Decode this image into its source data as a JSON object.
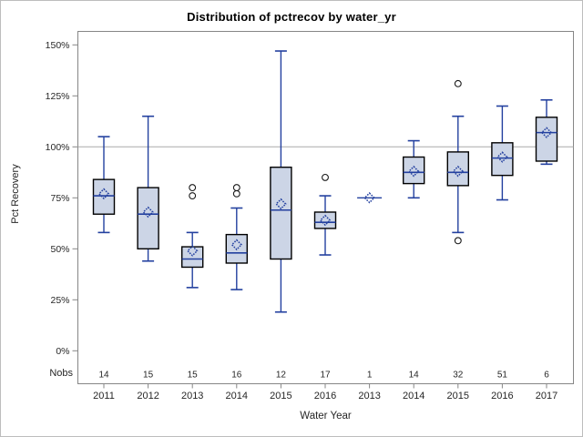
{
  "chart_data": {
    "type": "boxplot",
    "title": "Distribution of pctrecov by water_yr",
    "xlabel": "Water Year",
    "ylabel": "Pct Recovery",
    "nobs_label": "Nobs",
    "y_ticks": [
      "0%",
      "25%",
      "50%",
      "75%",
      "100%",
      "125%",
      "150%"
    ],
    "y_tick_values": [
      0,
      25,
      50,
      75,
      100,
      125,
      150
    ],
    "ylim": [
      0,
      150
    ],
    "reference_line": 100,
    "grid": "off",
    "legend": "none",
    "categories": [
      "2011",
      "2012",
      "2013",
      "2014",
      "2015",
      "2016",
      "2013",
      "2014",
      "2015",
      "2016",
      "2017"
    ],
    "nobs": [
      "14",
      "15",
      "15",
      "16",
      "12",
      "17",
      "1",
      "14",
      "32",
      "51",
      "6"
    ],
    "series": [
      {
        "year": "2011",
        "n": 14,
        "low": 58,
        "q1": 67,
        "median": 76,
        "q3": 84,
        "high": 105,
        "mean": 77,
        "outliers": []
      },
      {
        "year": "2012",
        "n": 15,
        "low": 44,
        "q1": 50,
        "median": 67,
        "q3": 80,
        "high": 115,
        "mean": 68,
        "outliers": []
      },
      {
        "year": "2013",
        "n": 15,
        "low": 31,
        "q1": 41,
        "median": 45,
        "q3": 51,
        "high": 58,
        "mean": 49,
        "outliers": [
          76,
          80
        ]
      },
      {
        "year": "2014",
        "n": 16,
        "low": 30,
        "q1": 43,
        "median": 48,
        "q3": 57,
        "high": 70,
        "mean": 52,
        "outliers": [
          77,
          80
        ]
      },
      {
        "year": "2015",
        "n": 12,
        "low": 19,
        "q1": 45,
        "median": 69,
        "q3": 90,
        "high": 147,
        "mean": 72,
        "outliers": []
      },
      {
        "year": "2016",
        "n": 17,
        "low": 47,
        "q1": 60,
        "median": 63,
        "q3": 68,
        "high": 76,
        "mean": 64,
        "outliers": [
          85
        ]
      },
      {
        "year": "2013",
        "n": 1,
        "low": 75,
        "q1": 75,
        "median": 75,
        "q3": 75,
        "high": 75,
        "mean": 75,
        "outliers": []
      },
      {
        "year": "2014",
        "n": 14,
        "low": 75,
        "q1": 82,
        "median": 87.5,
        "q3": 95,
        "high": 103,
        "mean": 88,
        "outliers": []
      },
      {
        "year": "2015",
        "n": 32,
        "low": 58,
        "q1": 81,
        "median": 87.5,
        "q3": 97.5,
        "high": 115,
        "mean": 88,
        "outliers": [
          54,
          131
        ]
      },
      {
        "year": "2016",
        "n": 51,
        "low": 74,
        "q1": 86,
        "median": 94.5,
        "q3": 102,
        "high": 120,
        "mean": 95,
        "outliers": []
      },
      {
        "year": "2017",
        "n": 6,
        "low": 91.5,
        "q1": 93,
        "median": 107,
        "q3": 114.5,
        "high": 123,
        "mean": 107,
        "outliers": []
      }
    ],
    "colors": {
      "box_fill": "#ccd5e6",
      "box_border": "#000000",
      "line_blue": "#23409f",
      "outlier_stroke": "#1a1a1a",
      "reference_line": "#aaaaaa",
      "frame": "#868686",
      "tick": "#868686",
      "text": "#262626",
      "title_text": "#000000",
      "background": "#ffffff"
    }
  }
}
